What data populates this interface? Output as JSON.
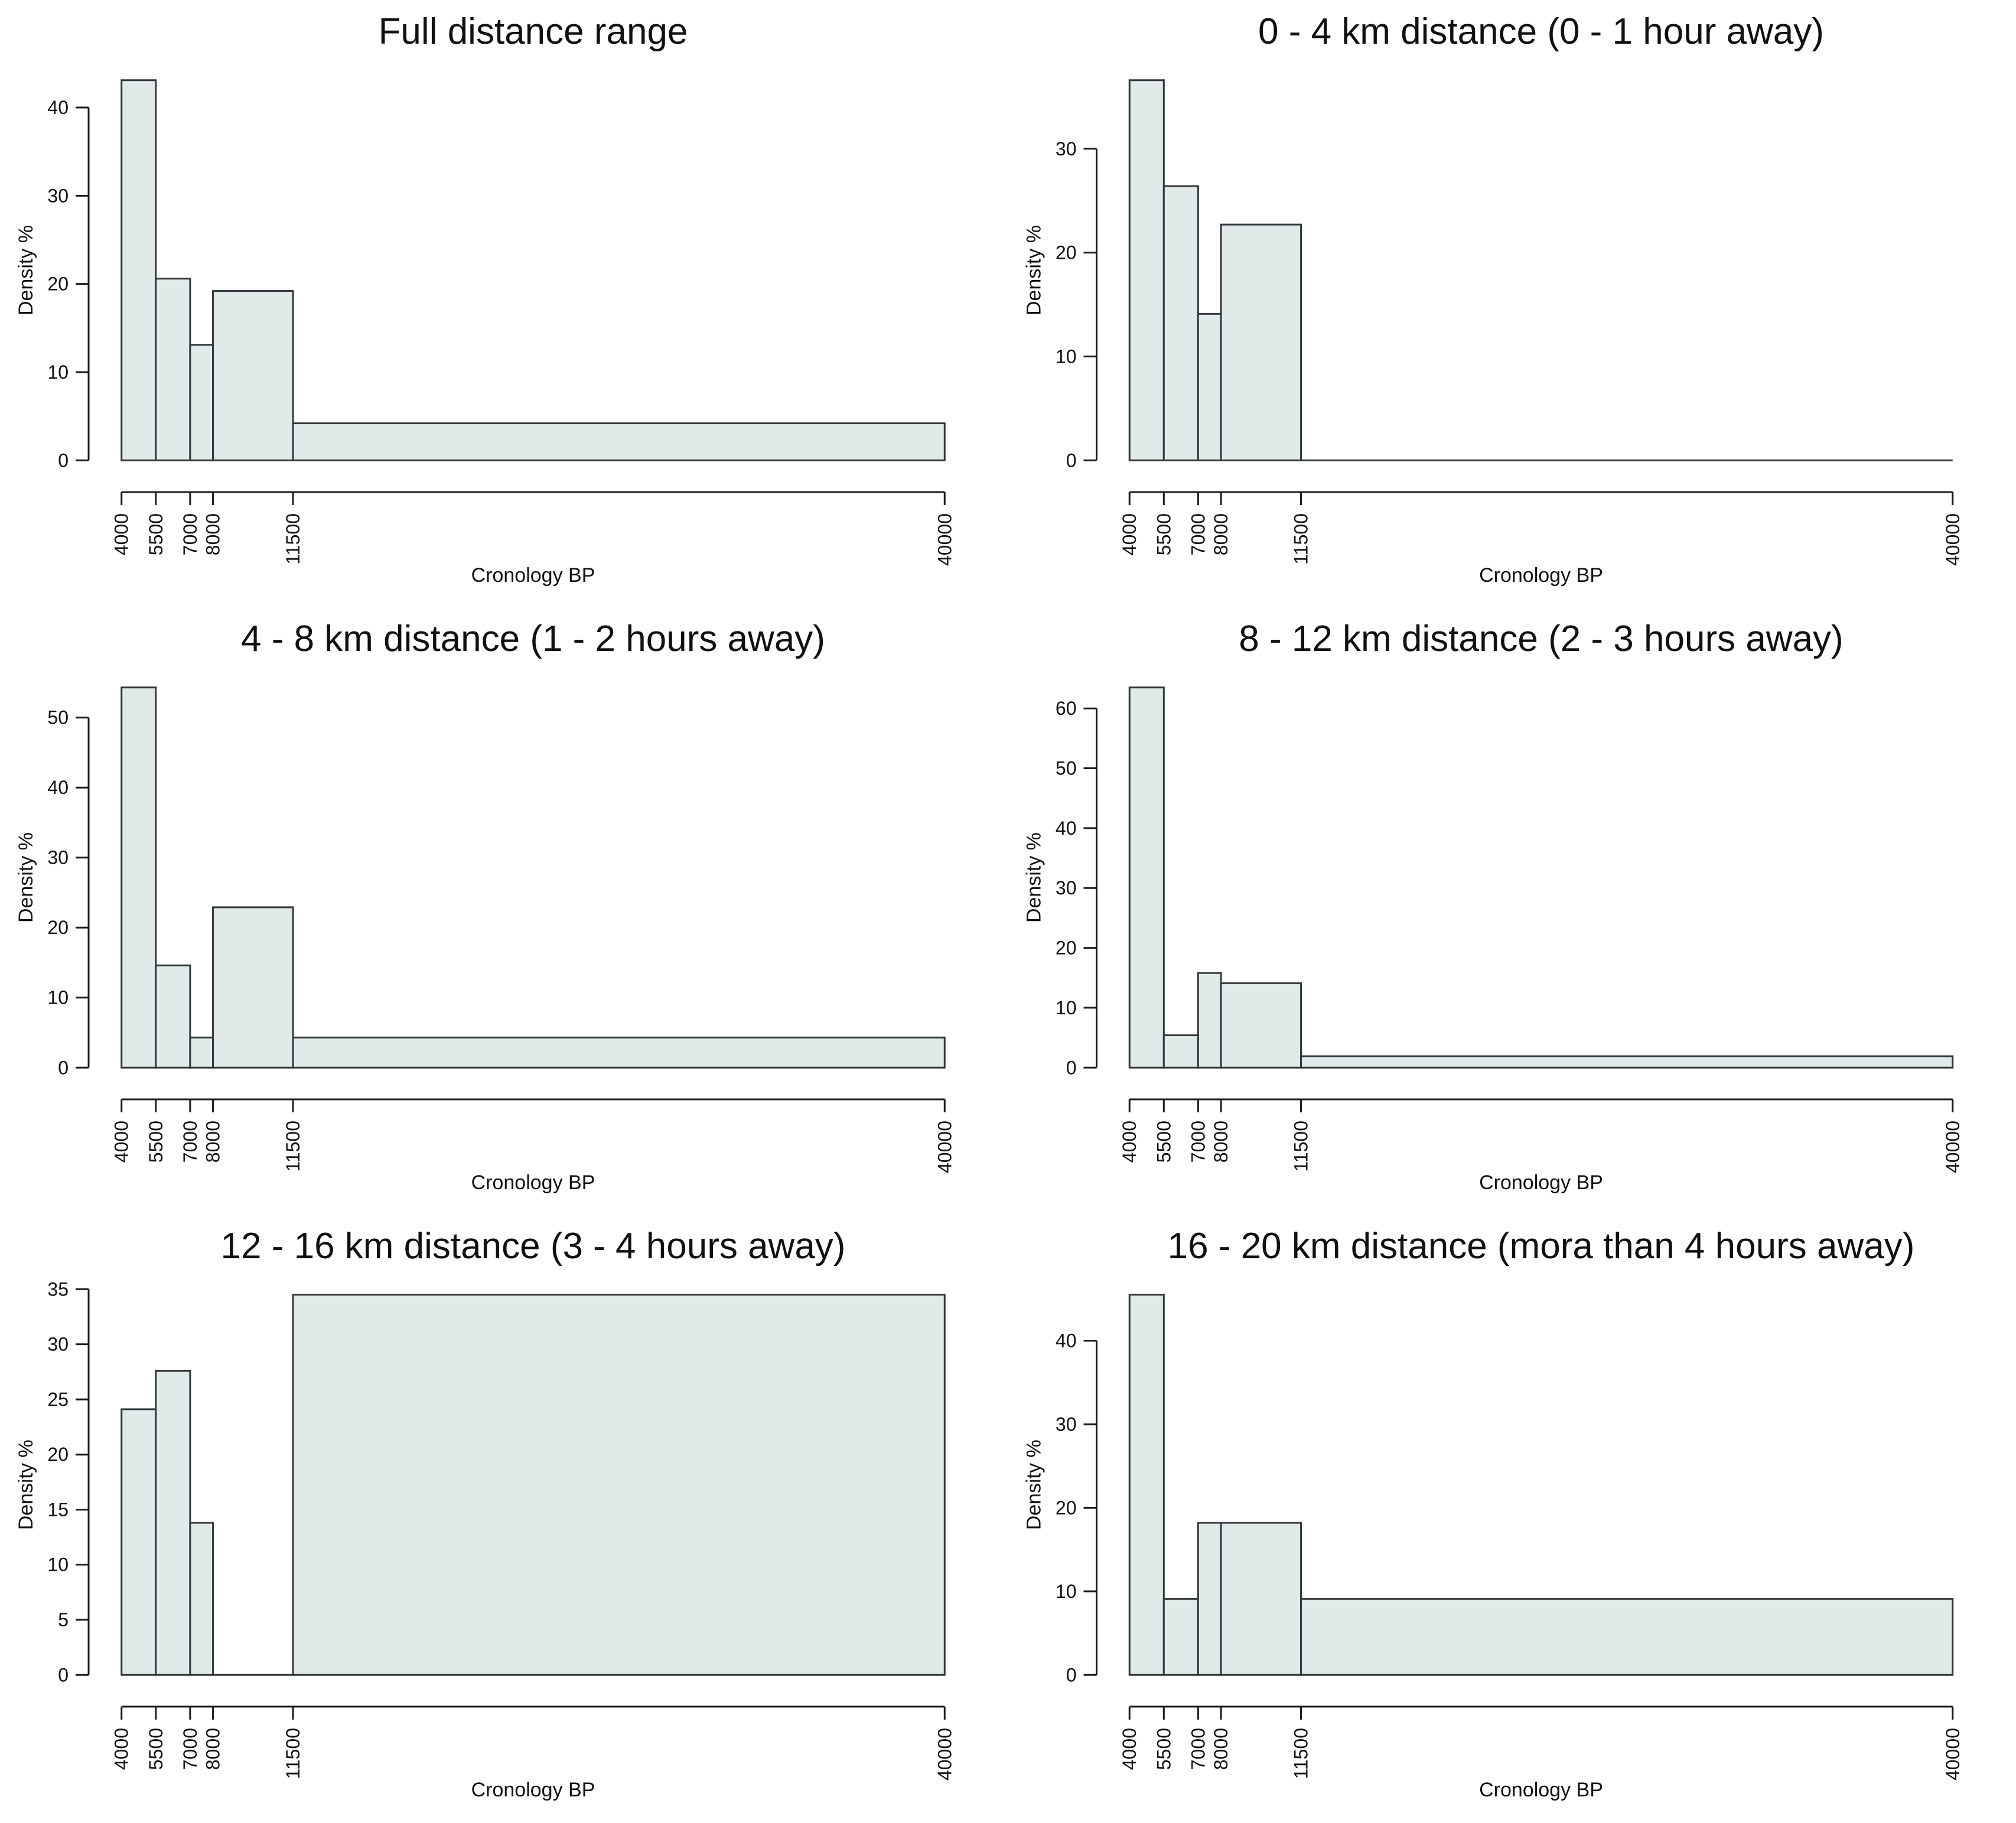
{
  "page": {
    "background": "#ffffff"
  },
  "styles": {
    "bar_fill": "#e0ebe9",
    "bar_stroke": "#33393b",
    "axis_color": "#1c1c1c",
    "text_color": "#101010",
    "title_font_size": 62,
    "tick_font_size": 32,
    "axis_label_font_size": 34
  },
  "chart_data": [
    {
      "type": "bar",
      "subtype": "histogram",
      "title": "Full distance range",
      "xlabel": "Cronology BP",
      "ylabel": "Density %",
      "bin_edges": [
        4000,
        5500,
        7000,
        8000,
        11500,
        40000
      ],
      "values": [
        43.1,
        20.6,
        13.1,
        19.2,
        4.2
      ],
      "x_ticks": [
        "4000",
        "5500",
        "7000",
        "8000",
        "11500",
        "40000"
      ],
      "y_ticks": [
        0,
        10,
        20,
        30,
        40
      ],
      "xlim": [
        4000,
        40000
      ],
      "grid": false,
      "legend": "none"
    },
    {
      "type": "bar",
      "subtype": "histogram",
      "title": "0 - 4 km distance (0 - 1 hour away)",
      "xlabel": "Cronology BP",
      "ylabel": "Density %",
      "bin_edges": [
        4000,
        5500,
        7000,
        8000,
        11500,
        40000
      ],
      "values": [
        36.6,
        26.4,
        14.1,
        22.7,
        0
      ],
      "x_ticks": [
        "4000",
        "5500",
        "7000",
        "8000",
        "11500",
        "40000"
      ],
      "y_ticks": [
        0,
        10,
        20,
        30
      ],
      "xlim": [
        4000,
        40000
      ],
      "grid": false,
      "legend": "none"
    },
    {
      "type": "bar",
      "subtype": "histogram",
      "title": "4 - 8 km distance (1 - 2 hours away)",
      "xlabel": "Cronology BP",
      "ylabel": "Density %",
      "bin_edges": [
        4000,
        5500,
        7000,
        8000,
        11500,
        40000
      ],
      "values": [
        54.3,
        14.6,
        4.3,
        22.9,
        4.3
      ],
      "x_ticks": [
        "4000",
        "5500",
        "7000",
        "8000",
        "11500",
        "40000"
      ],
      "y_ticks": [
        0,
        10,
        20,
        30,
        40,
        50
      ],
      "xlim": [
        4000,
        40000
      ],
      "grid": false,
      "legend": "none"
    },
    {
      "type": "bar",
      "subtype": "histogram",
      "title": "8 - 12 km distance (2 - 3 hours away)",
      "xlabel": "Cronology BP",
      "ylabel": "Density %",
      "bin_edges": [
        4000,
        5500,
        7000,
        8000,
        11500,
        40000
      ],
      "values": [
        63.5,
        5.4,
        15.8,
        14.1,
        1.9
      ],
      "x_ticks": [
        "4000",
        "5500",
        "7000",
        "8000",
        "11500",
        "40000"
      ],
      "y_ticks": [
        0,
        10,
        20,
        30,
        40,
        50,
        60
      ],
      "xlim": [
        4000,
        40000
      ],
      "grid": false,
      "legend": "none"
    },
    {
      "type": "bar",
      "subtype": "histogram",
      "title": "12 - 16 km distance (3 - 4 hours away)",
      "xlabel": "Cronology BP",
      "ylabel": "Density %",
      "bin_edges": [
        4000,
        5500,
        7000,
        8000,
        11500,
        40000
      ],
      "values": [
        24.1,
        27.6,
        13.8,
        0,
        34.5
      ],
      "x_ticks": [
        "4000",
        "5500",
        "7000",
        "8000",
        "11500",
        "40000"
      ],
      "y_ticks": [
        0,
        5,
        10,
        15,
        20,
        25,
        30,
        35
      ],
      "xlim": [
        4000,
        40000
      ],
      "grid": false,
      "legend": "none"
    },
    {
      "type": "bar",
      "subtype": "histogram",
      "title": "16 - 20 km distance (mora than 4 hours away)",
      "xlabel": "Cronology BP",
      "ylabel": "Density %",
      "bin_edges": [
        4000,
        5500,
        7000,
        8000,
        11500,
        40000
      ],
      "values": [
        45.5,
        9.1,
        18.2,
        18.2,
        9.1
      ],
      "x_ticks": [
        "4000",
        "5500",
        "7000",
        "8000",
        "11500",
        "40000"
      ],
      "y_ticks": [
        0,
        10,
        20,
        30,
        40
      ],
      "xlim": [
        4000,
        40000
      ],
      "grid": false,
      "legend": "none"
    }
  ]
}
